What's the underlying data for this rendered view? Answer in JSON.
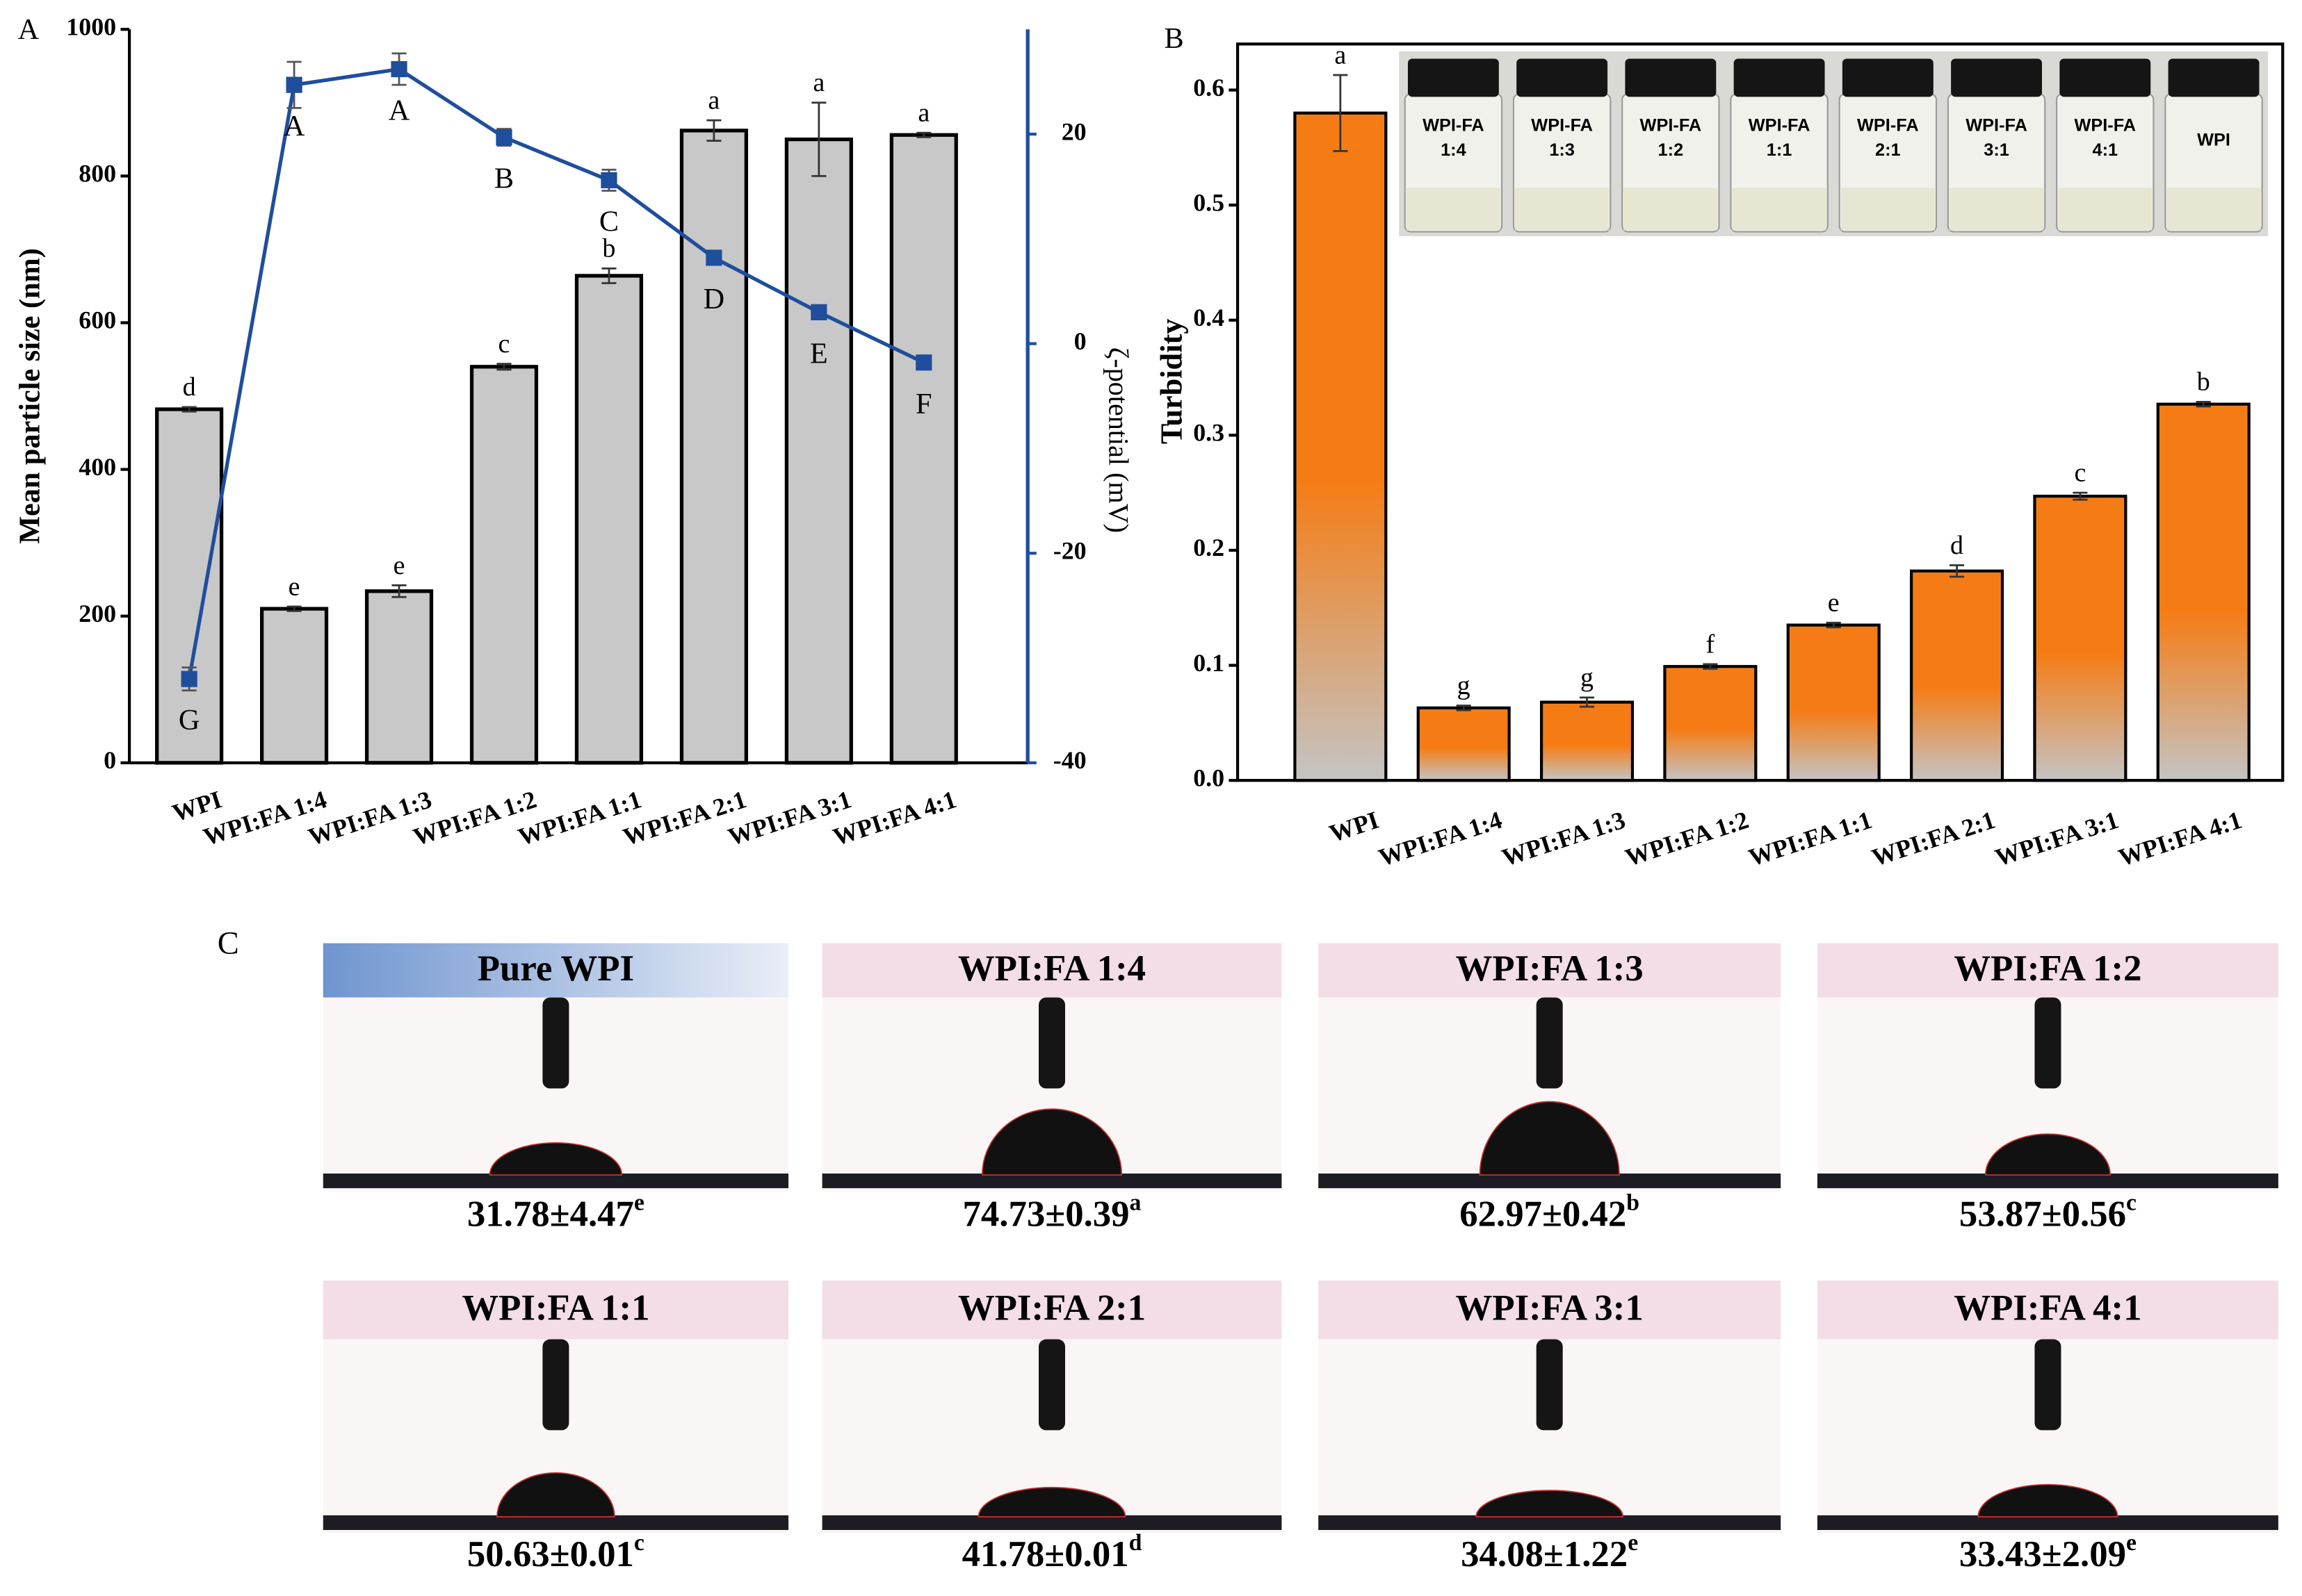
{
  "chart_data": [
    {
      "type": "bar_line",
      "label": "A",
      "categories": [
        "WPI",
        "WPI:FA 1:4",
        "WPI:FA 1:3",
        "WPI:FA 1:2",
        "WPI:FA 1:1",
        "WPI:FA 2:1",
        "WPI:FA 3:1",
        "WPI:FA 4:1"
      ],
      "ylabel": "Mean particle size (nm)",
      "y2label": "ζ-potential (mV)",
      "ylim": [
        0,
        1000
      ],
      "yticks": [
        0,
        200,
        400,
        600,
        800,
        1000
      ],
      "y2lim": [
        -40,
        30
      ],
      "y2ticks": [
        -40,
        -20,
        0,
        20
      ],
      "series": [
        {
          "type": "bar",
          "color": "#c8c8c8",
          "values": [
            482,
            210,
            234,
            540,
            664,
            862,
            850,
            856
          ],
          "errors": [
            3,
            3,
            8,
            4,
            10,
            14,
            50,
            3
          ],
          "labels": [
            "d",
            "e",
            "e",
            "c",
            "b",
            "a",
            "a",
            "a"
          ]
        },
        {
          "type": "line",
          "axis": "y2",
          "color": "#1f4e9c",
          "values": [
            -32,
            24.7,
            26.2,
            19.7,
            15.6,
            8.2,
            3,
            -1.8
          ],
          "errors": [
            1.1,
            2.2,
            1.5,
            0.8,
            1,
            0.3,
            0.3,
            0.3
          ],
          "labels": [
            "G",
            "A",
            "A",
            "B",
            "C",
            "D",
            "E",
            "F"
          ]
        }
      ]
    },
    {
      "type": "bar",
      "label": "B",
      "categories": [
        "WPI",
        "WPI:FA 1:4",
        "WPI:FA 1:3",
        "WPI:FA 1:2",
        "WPI:FA 1:1",
        "WPI:FA 2:1",
        "WPI:FA 3:1",
        "WPI:FA 4:1"
      ],
      "ylabel": "Turbidity",
      "ylim": [
        0,
        0.64
      ],
      "yticks": [
        {
          "value": 0,
          "label": "0.0"
        },
        0.1,
        0.2,
        0.3,
        0.4,
        0.5,
        0.6
      ],
      "colors": [
        "#f57c14",
        "#c4c4c4"
      ],
      "values": [
        0.58,
        0.063,
        0.068,
        0.099,
        0.135,
        0.182,
        0.247,
        0.327
      ],
      "errors": [
        0.033,
        0.002,
        0.004,
        0.002,
        0.002,
        0.005,
        0.003,
        0.002
      ],
      "labels": [
        "a",
        "g",
        "g",
        "f",
        "e",
        "d",
        "c",
        "b"
      ],
      "inset_labels": [
        [
          "WPI-FA",
          "1:4"
        ],
        [
          "WPI-FA",
          "1:3"
        ],
        [
          "WPI-FA",
          "1:2"
        ],
        [
          "WPI-FA",
          "1:1"
        ],
        [
          "WPI-FA",
          "2:1"
        ],
        [
          "WPI-FA",
          "3:1"
        ],
        [
          "WPI-FA",
          "4:1"
        ],
        [
          "WPI"
        ]
      ]
    }
  ],
  "contact_angles": {
    "label": "C",
    "panels": [
      {
        "title": "Pure WPI",
        "value": "31.78±4.47",
        "sig": "e"
      },
      {
        "title": "WPI:FA 1:4",
        "value": "74.73±0.39",
        "sig": "a"
      },
      {
        "title": "WPI:FA 1:3",
        "value": "62.97±0.42",
        "sig": "b"
      },
      {
        "title": "WPI:FA 1:2",
        "value": "53.87±0.56",
        "sig": "c"
      },
      {
        "title": "WPI:FA 1:1",
        "value": "50.63±0.01",
        "sig": "c"
      },
      {
        "title": "WPI:FA 2:1",
        "value": "41.78±0.01",
        "sig": "d"
      },
      {
        "title": "WPI:FA 3:1",
        "value": "34.08±1.22",
        "sig": "e"
      },
      {
        "title": "WPI:FA 4:1",
        "value": "33.43±2.09",
        "sig": "e"
      }
    ]
  }
}
